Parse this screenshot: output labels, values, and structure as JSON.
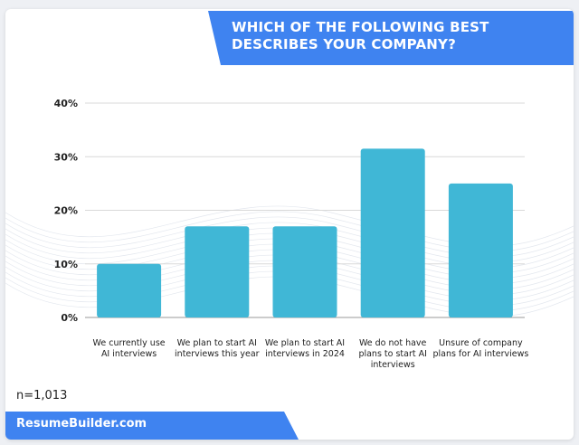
{
  "header": {
    "title": "WHICH OF THE FOLLOWING BEST DESCRIBES YOUR COMPANY?"
  },
  "footer": {
    "sample_size": "n=1,013",
    "brand": "ResumeBuilder.com"
  },
  "colors": {
    "bar": "#40b7d6",
    "banner": "#3f83f0",
    "grid": "#d9d9d9"
  },
  "chart_data": {
    "type": "bar",
    "categories": [
      "We currently use AI interviews",
      "We plan to start AI interviews this year",
      "We plan to start AI interviews in 2024",
      "We do not have plans to start AI interviews",
      "Unsure of company plans for AI interviews"
    ],
    "category_lines": [
      [
        "We currently use",
        "AI interviews"
      ],
      [
        "We plan to start AI",
        "interviews this year"
      ],
      [
        "We plan to start AI",
        "interviews in 2024"
      ],
      [
        "We do not have",
        "plans to start AI",
        "interviews"
      ],
      [
        "Unsure of company",
        "plans for AI interviews"
      ]
    ],
    "values": [
      10,
      17,
      17,
      31.5,
      25
    ],
    "ylim": [
      0,
      40
    ],
    "yticks": [
      0,
      10,
      20,
      30,
      40
    ],
    "ytick_labels": [
      "0%",
      "10%",
      "20%",
      "30%",
      "40%"
    ],
    "grid": true
  }
}
